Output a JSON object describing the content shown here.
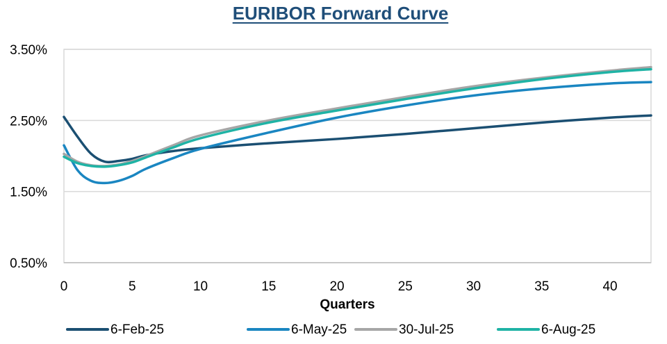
{
  "chart_data": {
    "type": "line",
    "title": "EURIBOR Forward Curve",
    "xlabel": "Quarters",
    "ylabel": "",
    "xlim": [
      0,
      43
    ],
    "ylim": [
      0.5,
      3.5
    ],
    "x_ticks": [
      0,
      5,
      10,
      15,
      20,
      25,
      30,
      35,
      40
    ],
    "y_ticks": [
      0.5,
      1.5,
      2.5,
      3.5
    ],
    "y_tick_labels": [
      "0.50%",
      "1.50%",
      "2.50%",
      "3.50%"
    ],
    "grid": "horizontal",
    "legend_position": "bottom",
    "series": [
      {
        "name": "6-Feb-25",
        "color": "#1b4f72",
        "x": [
          0,
          1,
          2,
          3,
          4,
          5,
          6,
          8,
          10,
          15,
          20,
          25,
          30,
          35,
          40,
          43
        ],
        "values": [
          2.55,
          2.27,
          2.03,
          1.92,
          1.93,
          1.96,
          2.01,
          2.07,
          2.11,
          2.18,
          2.24,
          2.31,
          2.39,
          2.47,
          2.54,
          2.57
        ]
      },
      {
        "name": "6-May-25",
        "color": "#1a86c1",
        "x": [
          0,
          1,
          2,
          3,
          4,
          5,
          6,
          8,
          10,
          15,
          20,
          25,
          30,
          35,
          40,
          43
        ],
        "values": [
          2.15,
          1.8,
          1.65,
          1.62,
          1.65,
          1.72,
          1.82,
          1.97,
          2.1,
          2.33,
          2.54,
          2.71,
          2.85,
          2.95,
          3.02,
          3.04
        ]
      },
      {
        "name": "30-Jul-25",
        "color": "#a6a6a6",
        "x": [
          0,
          1,
          2,
          3,
          4,
          5,
          6,
          8,
          10,
          15,
          20,
          25,
          30,
          35,
          40,
          43
        ],
        "values": [
          2.03,
          1.92,
          1.87,
          1.86,
          1.88,
          1.93,
          2.0,
          2.15,
          2.29,
          2.5,
          2.67,
          2.83,
          2.98,
          3.1,
          3.2,
          3.25
        ]
      },
      {
        "name": "6-Aug-25",
        "color": "#1fb3a5",
        "x": [
          0,
          1,
          2,
          3,
          4,
          5,
          6,
          8,
          10,
          15,
          20,
          25,
          30,
          35,
          40,
          43
        ],
        "values": [
          1.99,
          1.9,
          1.86,
          1.85,
          1.87,
          1.91,
          1.98,
          2.12,
          2.25,
          2.47,
          2.64,
          2.8,
          2.95,
          3.08,
          3.18,
          3.22
        ]
      }
    ]
  }
}
